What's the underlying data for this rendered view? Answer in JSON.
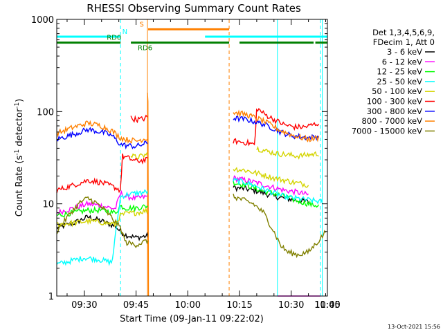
{
  "chart_data": {
    "type": "line",
    "title": "RHESSI Observing Summary Count Rates",
    "xlabel": "Start Time (09-Jan-11 09:22:02)",
    "ylabel_parts": [
      "Count Rate (s",
      "-1",
      " detector",
      "-1",
      ")"
    ],
    "yscale": "log",
    "ylim": [
      1,
      1000
    ],
    "xlim_minutes": [
      22.0,
      100.5
    ],
    "x_ticks": [
      {
        "minute": 30,
        "label": "09:30"
      },
      {
        "minute": 45,
        "label": "09:45"
      },
      {
        "minute": 60,
        "label": "10:00"
      },
      {
        "minute": 75,
        "label": "10:15"
      },
      {
        "minute": 90,
        "label": "10:30"
      },
      {
        "minute": 105,
        "label": "10:45"
      },
      {
        "minute": 120,
        "label": "11:00"
      }
    ],
    "y_ticks": [
      {
        "value": 1,
        "label": "1"
      },
      {
        "value": 10,
        "label": "10"
      },
      {
        "value": 100,
        "label": "100"
      },
      {
        "value": 1000,
        "label": "1000"
      }
    ],
    "legend": {
      "header": [
        "Det 1,3,4,5,6,9,",
        "FDecim 1, Att 0"
      ],
      "entries": [
        {
          "label": "3 - 6 keV",
          "color": "#000000"
        },
        {
          "label": "6 - 12 keV",
          "color": "#ff00ff"
        },
        {
          "label": "12 - 25 keV",
          "color": "#00ff00"
        },
        {
          "label": "25 - 50 keV",
          "color": "#00ffff"
        },
        {
          "label": "50 - 100 keV",
          "color": "#d4d400"
        },
        {
          "label": "100 - 300 keV",
          "color": "#ff0000"
        },
        {
          "label": "300 - 800 keV",
          "color": "#0000ff"
        },
        {
          "label": "800 - 7000 keV",
          "color": "#ff8000"
        },
        {
          "label": "7000 - 15000 keV",
          "color": "#808000"
        }
      ]
    },
    "flag_bars": [
      {
        "label": "N",
        "color": "#00ffff",
        "level": 650,
        "segments": [
          [
            22.0,
            40.5
          ],
          [
            65.0,
            100.5
          ]
        ]
      },
      {
        "label": "S",
        "color": "#ff8000",
        "level": 780,
        "segments": [
          [
            48.5,
            72.0
          ]
        ]
      },
      {
        "label": "RD0",
        "color": "#008000",
        "level": 560,
        "segments": [
          [
            22.0,
            40.5
          ]
        ]
      },
      {
        "label": "RD6",
        "color": "#008000",
        "level": 560,
        "segments": [
          [
            43.5,
            72.0
          ],
          [
            75.0,
            96.5
          ],
          [
            97.0,
            100.5
          ]
        ]
      }
    ],
    "vertical_markers": [
      {
        "minute": 40.5,
        "color": "#00ffff",
        "style": "dashed"
      },
      {
        "minute": 48.3,
        "color": "#ff8000",
        "style": "solid"
      },
      {
        "minute": 72.0,
        "color": "#ff8000",
        "style": "dashed"
      },
      {
        "minute": 86.0,
        "color": "#00ffff",
        "style": "solid"
      },
      {
        "minute": 98.5,
        "color": "#00ffff",
        "style": "dashed"
      },
      {
        "minute": 99.0,
        "color": "#00ffff",
        "style": "solid"
      }
    ],
    "data_gap_minutes": [
      48.5,
      73.2
    ],
    "series": [
      {
        "name": "3 - 6 keV",
        "color": "#000000",
        "segments": [
          [
            [
              22.0,
              5.5
            ],
            [
              27,
              6.2
            ],
            [
              31,
              7.2
            ],
            [
              35,
              6.5
            ],
            [
              39,
              5.7
            ],
            [
              40.5,
              5.0
            ],
            [
              42,
              4.6
            ],
            [
              45,
              4.3
            ],
            [
              48.5,
              4.5
            ]
          ],
          [
            [
              73.2,
              15
            ],
            [
              77,
              14.5
            ],
            [
              81,
              13.5
            ],
            [
              85,
              12
            ],
            [
              88,
              11.5
            ],
            [
              91,
              11
            ],
            [
              95,
              10.5
            ]
          ]
        ]
      },
      {
        "name": "6 - 12 keV",
        "color": "#ff00ff",
        "segments": [
          [
            [
              22.0,
              8.0
            ],
            [
              27,
              9.0
            ],
            [
              31,
              10.0
            ],
            [
              35,
              9.5
            ],
            [
              39,
              8.8
            ],
            [
              40.5,
              13
            ],
            [
              42,
              12
            ],
            [
              45,
              11.5
            ],
            [
              48.5,
              12
            ]
          ],
          [
            [
              73.2,
              19
            ],
            [
              77,
              18
            ],
            [
              81,
              16.5
            ],
            [
              85,
              15
            ],
            [
              88,
              14
            ],
            [
              91,
              13.5
            ],
            [
              95,
              12.5
            ]
          ],
          [
            [
              86,
              1.0
            ],
            [
              98.5,
              1.0
            ]
          ]
        ]
      },
      {
        "name": "12 - 25 keV",
        "color": "#00ff00",
        "segments": [
          [
            [
              22.0,
              7.5
            ],
            [
              27,
              8.0
            ],
            [
              31,
              8.5
            ],
            [
              35,
              8.5
            ],
            [
              39,
              8.0
            ],
            [
              40.5,
              9.5
            ],
            [
              42,
              9.0
            ],
            [
              45,
              9.0
            ],
            [
              48.5,
              9.5
            ]
          ],
          [
            [
              73.2,
              17
            ],
            [
              77,
              16
            ],
            [
              81,
              14
            ],
            [
              85,
              13
            ],
            [
              88,
              12
            ],
            [
              91,
              11
            ],
            [
              95,
              10
            ],
            [
              98,
              9.5
            ]
          ]
        ]
      },
      {
        "name": "25 - 50 keV",
        "color": "#00ffff",
        "segments": [
          [
            [
              22.0,
              2.2
            ],
            [
              26,
              2.4
            ],
            [
              30,
              2.6
            ],
            [
              34,
              2.5
            ],
            [
              38,
              2.3
            ],
            [
              40.5,
              12
            ],
            [
              42,
              12.5
            ],
            [
              45,
              13
            ],
            [
              48.5,
              13.5
            ]
          ],
          [
            [
              73.2,
              18
            ],
            [
              77,
              17
            ],
            [
              81,
              15
            ],
            [
              85,
              13
            ],
            [
              88,
              12
            ],
            [
              91,
              11.5
            ],
            [
              95,
              11
            ],
            [
              99,
              10.5
            ]
          ]
        ]
      },
      {
        "name": "50 - 100 keV",
        "color": "#d4d400",
        "segments": [
          [
            [
              22.0,
              6.0
            ],
            [
              27,
              6.2
            ],
            [
              31,
              6.5
            ],
            [
              35,
              6.3
            ],
            [
              39,
              6.0
            ],
            [
              40.5,
              7.5
            ],
            [
              42,
              7.8
            ],
            [
              45,
              8.0
            ],
            [
              48.5,
              8.5
            ]
          ],
          [
            [
              73.2,
              24
            ],
            [
              77,
              23
            ],
            [
              81,
              21
            ],
            [
              85,
              19
            ],
            [
              88,
              18
            ],
            [
              91,
              17
            ],
            [
              95,
              16
            ]
          ],
          [
            [
              80,
              40
            ],
            [
              83,
              37
            ],
            [
              86,
              35
            ],
            [
              89,
              34
            ],
            [
              92,
              33
            ],
            [
              95,
              34
            ],
            [
              98,
              35
            ]
          ],
          [
            [
              43.5,
              33
            ],
            [
              45,
              32
            ],
            [
              47,
              33
            ],
            [
              48.5,
              35
            ]
          ]
        ]
      },
      {
        "name": "100 - 300 keV",
        "color": "#ff0000",
        "segments": [
          [
            [
              22.0,
              14
            ],
            [
              27,
              16
            ],
            [
              31,
              18
            ],
            [
              35,
              17
            ],
            [
              39,
              15
            ],
            [
              40.5,
              14
            ],
            [
              41,
              33
            ],
            [
              42,
              32
            ],
            [
              45,
              29
            ],
            [
              48.5,
              30
            ]
          ],
          [
            [
              73.2,
              48
            ],
            [
              77,
              46
            ],
            [
              79.5,
              44
            ],
            [
              80,
              110
            ],
            [
              82,
              95
            ],
            [
              85,
              82
            ],
            [
              88,
              72
            ],
            [
              91,
              68
            ],
            [
              94,
              68
            ],
            [
              98,
              75
            ]
          ],
          [
            [
              43.5,
              85
            ],
            [
              45,
              82
            ],
            [
              47,
              83
            ],
            [
              48.5,
              88
            ]
          ]
        ]
      },
      {
        "name": "300 - 800 keV",
        "color": "#0000ff",
        "segments": [
          [
            [
              22.0,
              50
            ],
            [
              27,
              57
            ],
            [
              31,
              64
            ],
            [
              35,
              60
            ],
            [
              38,
              55
            ],
            [
              40.5,
              44
            ],
            [
              42,
              43
            ],
            [
              45,
              42
            ],
            [
              48.5,
              46
            ]
          ],
          [
            [
              73.2,
              85
            ],
            [
              77,
              82
            ],
            [
              81,
              75
            ],
            [
              84,
              68
            ],
            [
              87,
              60
            ],
            [
              90,
              55
            ],
            [
              93,
              53
            ],
            [
              95,
              52
            ],
            [
              98,
              54
            ]
          ]
        ]
      },
      {
        "name": "800 - 7000 keV",
        "color": "#ff8000",
        "segments": [
          [
            [
              22.0,
              58
            ],
            [
              27,
              68
            ],
            [
              31,
              75
            ],
            [
              35,
              70
            ],
            [
              38,
              62
            ],
            [
              40.5,
              52
            ],
            [
              42,
              50
            ],
            [
              45,
              48
            ],
            [
              48.5,
              52
            ]
          ],
          [
            [
              73.2,
              98
            ],
            [
              77,
              93
            ],
            [
              81,
              82
            ],
            [
              84,
              72
            ],
            [
              87,
              62
            ],
            [
              90,
              56
            ],
            [
              93,
              52
            ],
            [
              95,
              50
            ],
            [
              98,
              52
            ]
          ],
          [
            [
              48.3,
              160
            ],
            [
              48.5,
              120
            ],
            [
              48.6,
              1.0
            ]
          ]
        ]
      },
      {
        "name": "7000 - 15000 keV",
        "color": "#808000",
        "segments": [
          [
            [
              22.0,
              5.0
            ],
            [
              26,
              8.0
            ],
            [
              29,
              10.5
            ],
            [
              31,
              11.5
            ],
            [
              33,
              10.5
            ],
            [
              36,
              8.5
            ],
            [
              38,
              7.0
            ],
            [
              40.5,
              5.5
            ],
            [
              42,
              3.8
            ],
            [
              45,
              3.6
            ],
            [
              48.5,
              4.0
            ]
          ],
          [
            [
              73.2,
              12
            ],
            [
              76,
              11
            ],
            [
              79,
              10
            ],
            [
              82,
              8
            ],
            [
              85,
              5
            ],
            [
              87,
              3.5
            ],
            [
              89,
              3.0
            ],
            [
              92,
              2.8
            ],
            [
              95,
              3.0
            ],
            [
              98,
              4.0
            ],
            [
              100,
              5.0
            ]
          ]
        ]
      }
    ]
  },
  "footer": {
    "date_stamp": "13-Oct-2021 15:56"
  }
}
